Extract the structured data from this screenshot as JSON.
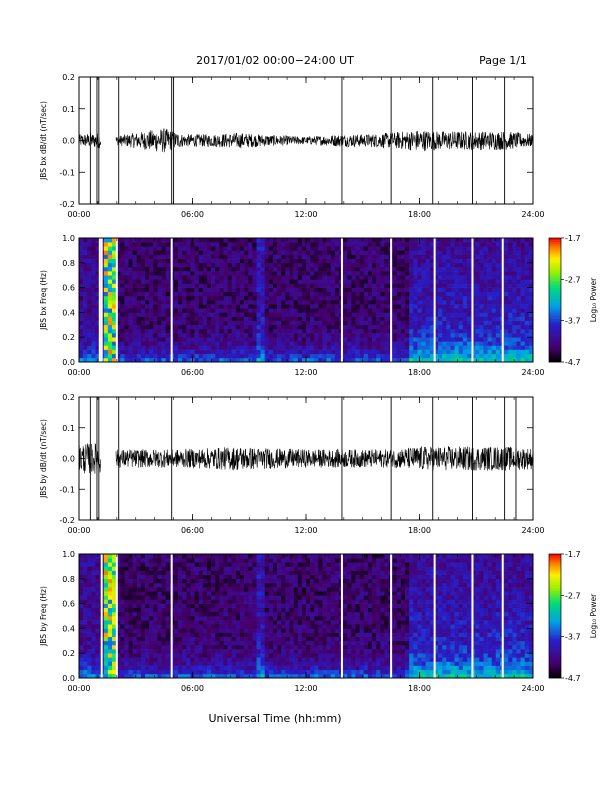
{
  "header": {
    "title": "2017/01/02  00:00−24:00 UT",
    "page": "Page 1/1"
  },
  "footer": {
    "xlabel": "Universal Time (hh:mm)"
  },
  "colorbar": {
    "label": "Log₁₀ Power",
    "ticks": [
      "-1.7",
      "-2.7",
      "-3.7",
      "-4.7"
    ],
    "range": [
      -4.7,
      -1.7
    ],
    "colormap": "rainbow (black-purple-blue-cyan-green-yellow-orange-red)"
  },
  "chart_data": [
    {
      "type": "line",
      "ylabel": "JBS bx dB/dt (nT/sec)",
      "xlim": [
        0,
        24
      ],
      "ylim": [
        -0.2,
        0.2
      ],
      "x_ticks": [
        "00:00",
        "06:00",
        "12:00",
        "18:00",
        "24:00"
      ],
      "y_ticks": [
        "-0.2",
        "-0.1",
        "0.0",
        "0.1",
        "0.2"
      ],
      "grid": false,
      "series": [
        {
          "values_note_hours": [
            0.1,
            1.1,
            1.5,
            2.0,
            4.5,
            5.0,
            5.5,
            7.0,
            8.5,
            9.5,
            12.0,
            13.8,
            15.0,
            16.5,
            18.0,
            19.0,
            20.0,
            21.0,
            22.5,
            24.0
          ],
          "envelope_amplitude": [
            0.02,
            0.025,
            0.02,
            0.015,
            0.04,
            0.03,
            0.02,
            0.02,
            0.025,
            0.02,
            0.012,
            0.02,
            0.02,
            0.025,
            0.035,
            0.03,
            0.03,
            0.03,
            0.03,
            0.02
          ]
        }
      ],
      "spikes_hours": [
        0.6,
        0.95,
        1.05,
        2.1,
        4.9,
        5.0,
        13.9,
        16.5,
        18.7,
        20.8,
        22.5
      ]
    },
    {
      "type": "heatmap",
      "ylabel": "JBS bx Freq (Hz)",
      "xlim": [
        0,
        24
      ],
      "ylim": [
        0.0,
        1.0
      ],
      "x_ticks": [
        "00:00",
        "06:00",
        "12:00",
        "18:00",
        "24:00"
      ],
      "y_ticks": [
        "0.0",
        "0.2",
        "0.4",
        "0.6",
        "0.8",
        "1.0"
      ],
      "grid": false,
      "gap_hours": [
        1.1,
        1.2,
        2.0,
        4.9,
        13.9,
        16.5,
        18.8,
        20.8,
        22.4
      ],
      "intense_band_hours": [
        1.3,
        1.9
      ]
    },
    {
      "type": "line",
      "ylabel": "JBS by dB/dt (nT/sec)",
      "xlim": [
        0,
        24
      ],
      "ylim": [
        -0.2,
        0.2
      ],
      "x_ticks": [
        "00:00",
        "06:00",
        "12:00",
        "18:00",
        "24:00"
      ],
      "y_ticks": [
        "-0.2",
        "-0.1",
        "0.0",
        "0.1",
        "0.2"
      ],
      "grid": false,
      "series": [
        {
          "values_note_hours": [
            0.1,
            1.1,
            1.5,
            2.0,
            4.5,
            5.0,
            5.5,
            7.0,
            8.5,
            9.5,
            12.0,
            13.8,
            15.0,
            16.5,
            18.0,
            19.0,
            20.0,
            21.0,
            22.5,
            24.0
          ],
          "envelope_amplitude": [
            0.05,
            0.05,
            0.03,
            0.03,
            0.03,
            0.03,
            0.03,
            0.035,
            0.04,
            0.035,
            0.03,
            0.03,
            0.03,
            0.03,
            0.04,
            0.04,
            0.04,
            0.04,
            0.04,
            0.035
          ]
        }
      ],
      "spikes_hours": [
        0.6,
        0.95,
        1.05,
        2.1,
        4.9,
        13.9,
        16.5,
        18.7,
        20.8,
        22.5,
        23.1
      ]
    },
    {
      "type": "heatmap",
      "ylabel": "JBS by Freq (Hz)",
      "xlim": [
        0,
        24
      ],
      "ylim": [
        0.0,
        1.0
      ],
      "x_ticks": [
        "00:00",
        "06:00",
        "12:00",
        "18:00",
        "24:00"
      ],
      "y_ticks": [
        "0.0",
        "0.2",
        "0.4",
        "0.6",
        "0.8",
        "1.0"
      ],
      "grid": false,
      "gap_hours": [
        1.2,
        2.0,
        4.9,
        13.9,
        16.5,
        18.8,
        20.8,
        22.4
      ],
      "intense_band_hours": [
        1.3,
        1.9
      ]
    }
  ]
}
